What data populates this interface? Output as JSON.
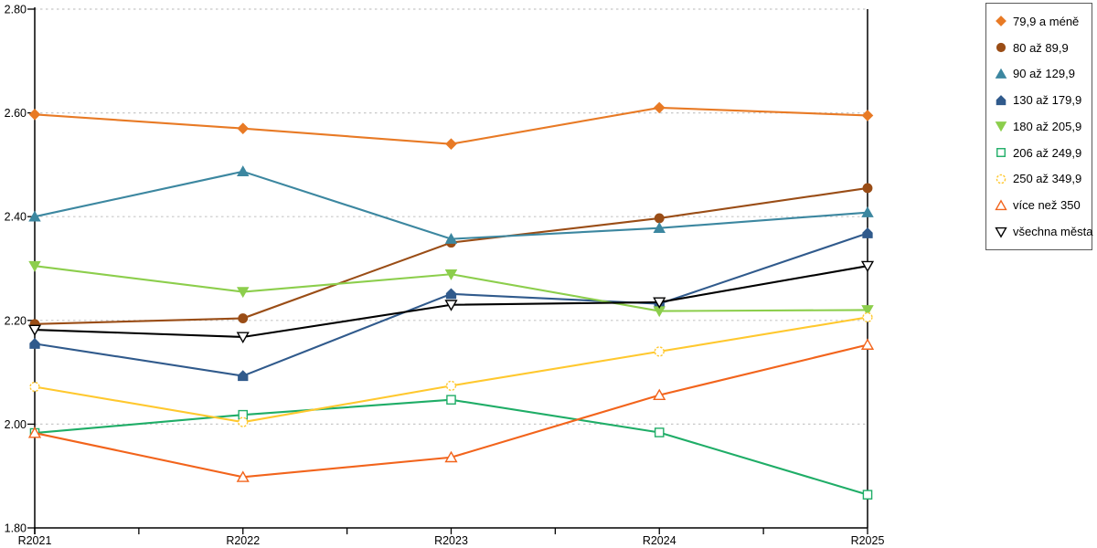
{
  "chart_data": {
    "type": "line",
    "title": "",
    "xlabel": "",
    "ylabel": "",
    "categories": [
      "R2021",
      "R2022",
      "R2023",
      "R2024",
      "R2025"
    ],
    "series": [
      {
        "name": "79,9 a méně",
        "marker": "diamond",
        "filled": true,
        "color": "#E87A25",
        "values": [
          2.597,
          2.57,
          2.54,
          2.61,
          2.595
        ]
      },
      {
        "name": "80 až 89,9",
        "marker": "circle",
        "filled": true,
        "color": "#9A4D16",
        "values": [
          2.193,
          2.204,
          2.35,
          2.397,
          2.455
        ]
      },
      {
        "name": "90 až 129,9",
        "marker": "triangle-up",
        "filled": true,
        "color": "#3C87A0",
        "values": [
          2.4,
          2.487,
          2.357,
          2.378,
          2.408
        ]
      },
      {
        "name": "130 až 179,9",
        "marker": "pentagon",
        "filled": true,
        "color": "#305A8C",
        "values": [
          2.155,
          2.093,
          2.251,
          2.232,
          2.368
        ]
      },
      {
        "name": "180 až 205,9",
        "marker": "triangle-down",
        "filled": true,
        "color": "#8CCE4C",
        "values": [
          2.305,
          2.255,
          2.289,
          2.218,
          2.22
        ]
      },
      {
        "name": "206 až 249,9",
        "marker": "square",
        "filled": false,
        "color": "#1FAD67",
        "values": [
          1.983,
          2.018,
          2.047,
          1.984,
          1.864
        ]
      },
      {
        "name": "250 až 349,9",
        "marker": "circle-dashed",
        "filled": false,
        "color": "#FFC82E",
        "values": [
          2.072,
          2.004,
          2.074,
          2.14,
          2.206
        ]
      },
      {
        "name": "více než 350",
        "marker": "triangle-up",
        "filled": false,
        "color": "#F2641C",
        "values": [
          1.983,
          1.898,
          1.936,
          2.056,
          2.153
        ]
      },
      {
        "name": "všechna města",
        "marker": "triangle-down",
        "filled": false,
        "color": "#000000",
        "values": [
          2.182,
          2.168,
          2.23,
          2.235,
          2.305
        ]
      }
    ],
    "ylim": [
      1.8,
      2.8
    ],
    "yticks": [
      "1.80",
      "2.00",
      "2.20",
      "2.40",
      "2.60",
      "2.80"
    ],
    "grid": "horizontal-dotted",
    "grid_color": "#C8C8C8",
    "axis_color": "#000000",
    "legend_position": "right"
  }
}
